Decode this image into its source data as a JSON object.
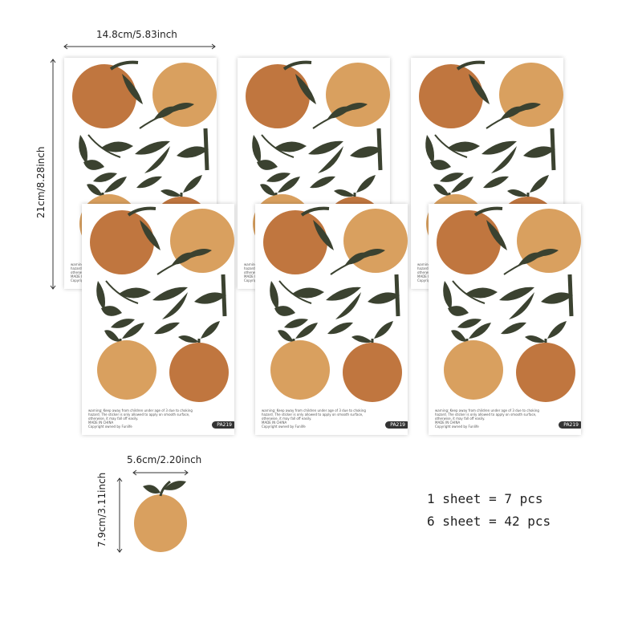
{
  "dimensions": {
    "sheet_width": "14.8cm/5.83inch",
    "sheet_height": "21cm/8.28inch",
    "piece_width": "5.6cm/2.20inch",
    "piece_height": "7.9cm/3.11inch"
  },
  "sheet": {
    "warning_text": "warning: Keep away from children under age of 3 due to choking hazard. The sticker is only allowed to apply on smooth surface, otherwise, it may fall off easily.",
    "made_in": "MADE IN CHINA",
    "copyright": "Copyright owned by Funlife",
    "product_code": "PA219"
  },
  "quantity": {
    "line1": "1 sheet = 7 pcs",
    "line2": "6 sheet = 42 pcs"
  },
  "colors": {
    "dark_orange": "#c0763f",
    "light_orange": "#d9a05f",
    "leaf": "#3b4230"
  }
}
